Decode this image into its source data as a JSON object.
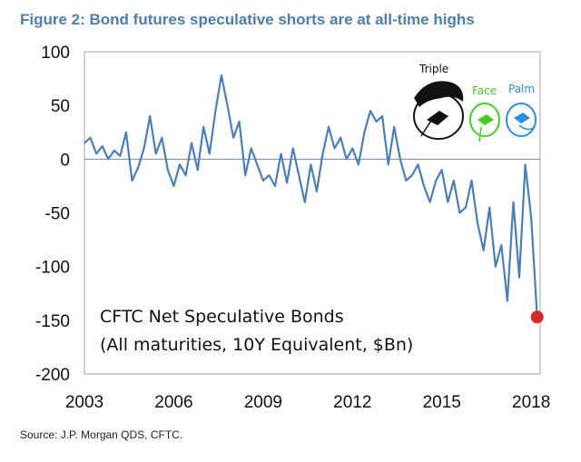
{
  "figure_title": "Figure 2: Bond futures speculative shorts are at all-time highs",
  "source": "Source: J.P. Morgan QDS, CFTC.",
  "doodle": {
    "word1": "Triple",
    "word2": "Face",
    "word3": "Palm"
  },
  "colors": {
    "title": "#4a7fb0",
    "line": "#4a7fb8",
    "marker": "#d42a2a",
    "zero_line": "#7a8aa0"
  },
  "chart_data": {
    "type": "line",
    "title": "CFTC Net Speculative Bonds",
    "subtitle": "(All maturities, 10Y Equivalent, $Bn)",
    "xlabel": "",
    "ylabel": "",
    "xlim": [
      2003,
      2018.3
    ],
    "ylim": [
      -200,
      100
    ],
    "x_ticks": [
      2003,
      2006,
      2009,
      2012,
      2015,
      2018
    ],
    "y_ticks": [
      100,
      50,
      0,
      -50,
      -100,
      -150,
      -200
    ],
    "grid": false,
    "highlight_point": {
      "x": 2018.2,
      "y": -147
    },
    "series": [
      {
        "x": [
          2003.0,
          2003.2,
          2003.4,
          2003.6,
          2003.8,
          2004.0,
          2004.2,
          2004.4,
          2004.6,
          2004.8,
          2005.0,
          2005.2,
          2005.4,
          2005.6,
          2005.8,
          2006.0,
          2006.2,
          2006.4,
          2006.6,
          2006.8,
          2007.0,
          2007.2,
          2007.4,
          2007.6,
          2007.8,
          2008.0,
          2008.2,
          2008.4,
          2008.6,
          2008.8,
          2009.0,
          2009.2,
          2009.4,
          2009.6,
          2009.8,
          2010.0,
          2010.2,
          2010.4,
          2010.6,
          2010.8,
          2011.0,
          2011.2,
          2011.4,
          2011.6,
          2011.8,
          2012.0,
          2012.2,
          2012.4,
          2012.6,
          2012.8,
          2013.0,
          2013.2,
          2013.4,
          2013.6,
          2013.8,
          2014.0,
          2014.2,
          2014.4,
          2014.6,
          2014.8,
          2015.0,
          2015.2,
          2015.4,
          2015.6,
          2015.8,
          2016.0,
          2016.2,
          2016.4,
          2016.6,
          2016.8,
          2017.0,
          2017.2,
          2017.4,
          2017.6,
          2017.8,
          2018.0,
          2018.2
        ],
        "values": [
          15,
          20,
          5,
          12,
          0,
          8,
          3,
          25,
          -20,
          -8,
          10,
          40,
          5,
          20,
          -10,
          -25,
          -5,
          -15,
          15,
          -10,
          30,
          5,
          45,
          78,
          50,
          20,
          35,
          -15,
          10,
          -5,
          -20,
          -15,
          -25,
          5,
          -22,
          10,
          -15,
          -40,
          -5,
          -30,
          5,
          30,
          10,
          20,
          0,
          10,
          -5,
          25,
          45,
          35,
          40,
          -5,
          30,
          0,
          -20,
          -15,
          -5,
          -25,
          -40,
          -20,
          -10,
          -40,
          -20,
          -50,
          -45,
          -20,
          -60,
          -85,
          -45,
          -100,
          -80,
          -132,
          -40,
          -110,
          -5,
          -55,
          -147
        ]
      }
    ]
  }
}
